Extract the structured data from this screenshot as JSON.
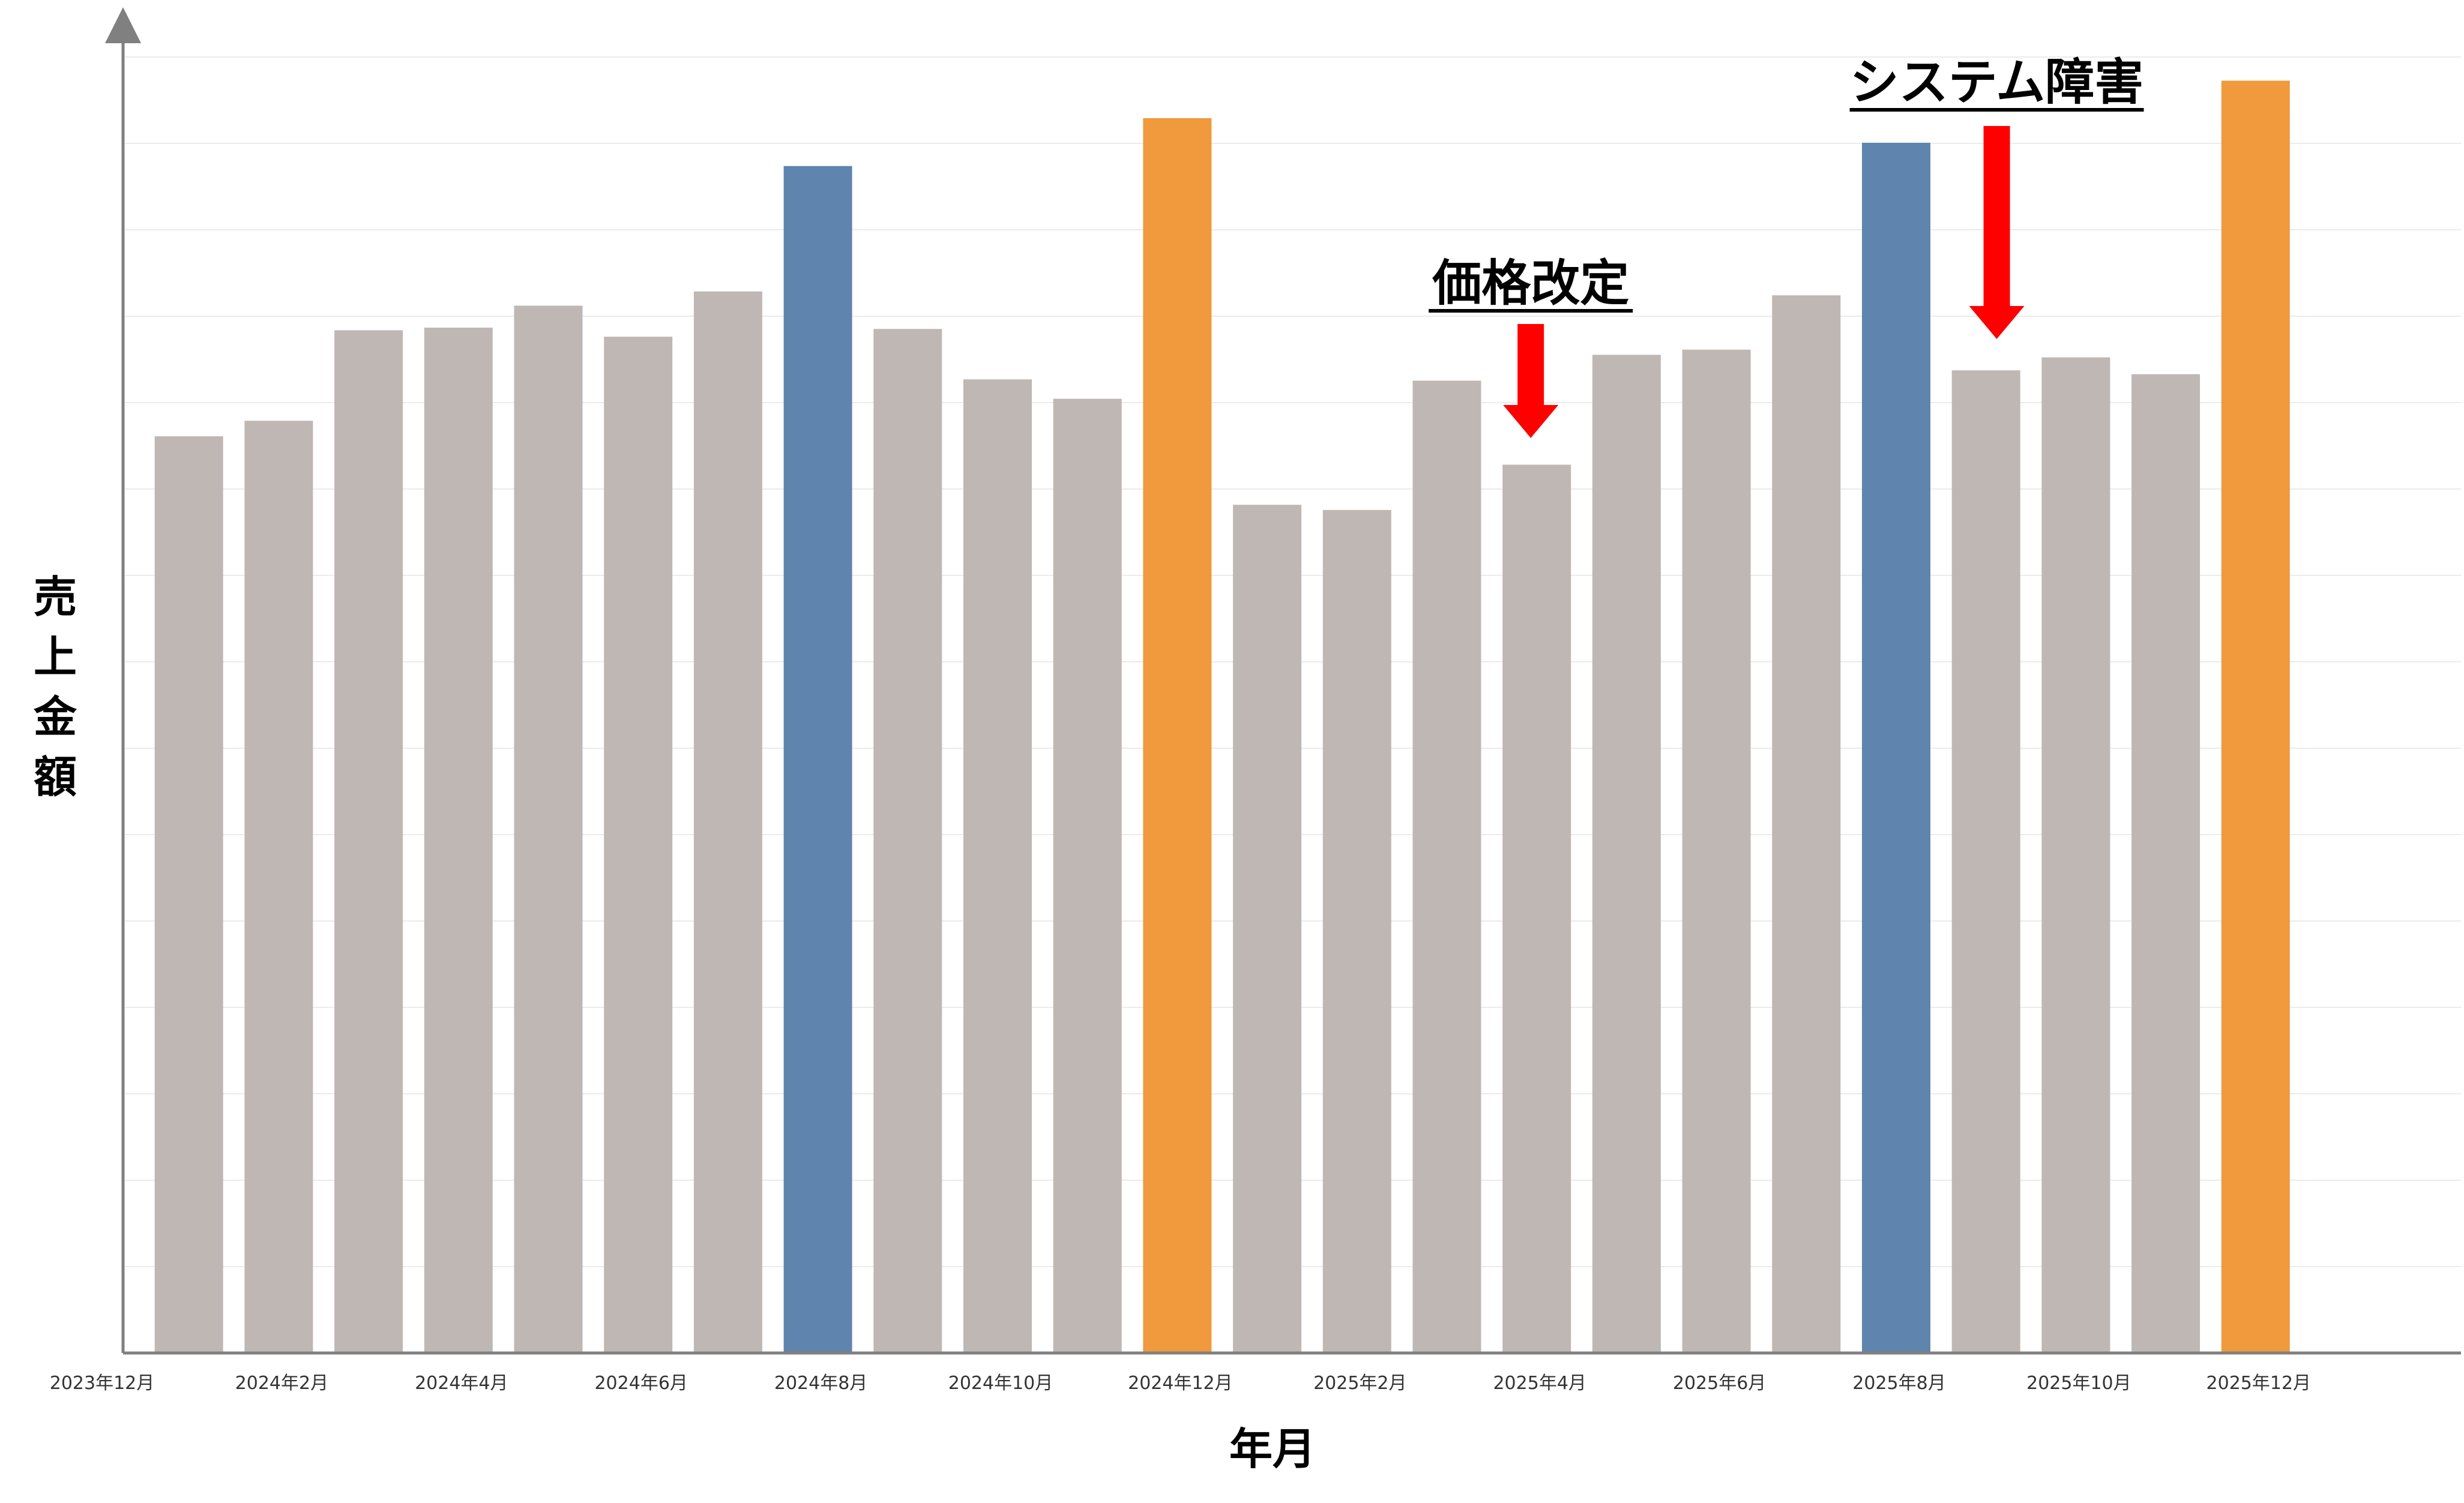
{
  "chart_data": {
    "type": "bar",
    "title": "",
    "xlabel": "年月",
    "ylabel": "売上金額",
    "categories": [
      "2023年12月",
      "2024年1月",
      "2024年2月",
      "2024年3月",
      "2024年4月",
      "2024年5月",
      "2024年6月",
      "2024年7月",
      "2024年8月",
      "2024年9月",
      "2024年10月",
      "2024年11月",
      "2024年12月",
      "2025年1月",
      "2025年2月",
      "2025年3月",
      "2025年4月",
      "2025年5月",
      "2025年6月",
      "2025年7月",
      "2025年8月",
      "2025年9月",
      "2025年10月",
      "2025年11月",
      "2025年12月"
    ],
    "x_tick_labels": [
      "2023年12月",
      "2024年2月",
      "2024年4月",
      "2024年6月",
      "2024年8月",
      "2024年10月",
      "2024年12月",
      "2025年2月",
      "2025年4月",
      "2025年6月",
      "2025年8月",
      "2025年10月",
      "2025年12月"
    ],
    "values": [
      null,
      70.9,
      72.1,
      79.1,
      79.3,
      81.0,
      78.6,
      82.1,
      91.8,
      79.2,
      75.3,
      73.8,
      95.5,
      65.6,
      65.2,
      75.2,
      68.7,
      77.2,
      77.6,
      81.8,
      93.6,
      76.0,
      77.0,
      75.7,
      98.4
    ],
    "ylim": [
      0,
      100
    ],
    "y_tick_labels_shown": false,
    "grid": true,
    "colors": {
      "default": "#bfb7b4",
      "august": "#5f84ad",
      "december": "#f0993d",
      "annotation_arrow": "#ff0000",
      "axis": "#808080",
      "grid": "#ebebeb"
    },
    "highlights": [
      {
        "category": "2024年8月",
        "color_key": "august"
      },
      {
        "category": "2024年12月",
        "color_key": "december"
      },
      {
        "category": "2025年8月",
        "color_key": "august"
      },
      {
        "category": "2025年12月",
        "color_key": "december"
      }
    ],
    "annotations": [
      {
        "text": "価格改定",
        "target": "2025年4月",
        "arrow": "down"
      },
      {
        "text": "システム障害",
        "target": "2025年9月",
        "arrow": "down"
      }
    ]
  }
}
